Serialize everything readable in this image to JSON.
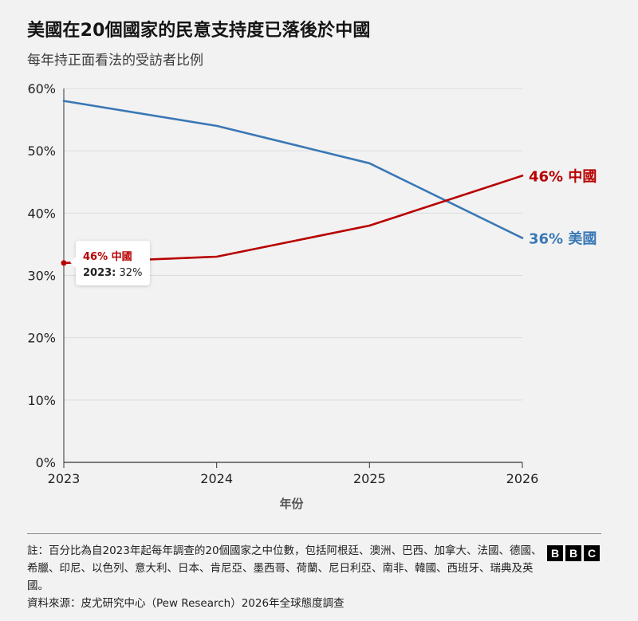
{
  "header": {
    "title": "美國在20個國家的民意支持度已落後於中國",
    "subtitle": "每年持正面看法的受訪者比例"
  },
  "chart_data": {
    "type": "line",
    "x": [
      2023,
      2024,
      2025,
      2026
    ],
    "x_ticks": [
      "2023",
      "2024",
      "2025",
      "2026"
    ],
    "xlabel": "年份",
    "ylabel": "",
    "ylim": [
      0,
      60
    ],
    "y_ticks": [
      "0%",
      "10%",
      "20%",
      "30%",
      "40%",
      "50%",
      "60%"
    ],
    "y_tick_values": [
      0,
      10,
      20,
      30,
      40,
      50,
      60
    ],
    "grid": true,
    "series": [
      {
        "name": "美國",
        "values": [
          58,
          54,
          48,
          36
        ],
        "color": "#3a78b5",
        "end_label": "36% 美國"
      },
      {
        "name": "中國",
        "values": [
          32,
          33,
          38,
          46
        ],
        "color": "#b80000",
        "end_label": "46% 中國"
      }
    ]
  },
  "tooltip": {
    "label": "46% 中國",
    "year": "2023:",
    "value": "32%"
  },
  "footer": {
    "note": "註：百分比為自2023年起每年調查的20個國家之中位數，包括阿根廷、澳洲、巴西、加拿大、法國、德國、希臘、印尼、以色列、意大利、日本、肯尼亞、墨西哥、荷蘭、尼日利亞、南非、韓國、西班牙、瑞典及英國。",
    "source": "資料來源：皮尤研究中心（Pew Research）2026年全球態度調查",
    "logo": [
      "B",
      "B",
      "C"
    ]
  }
}
